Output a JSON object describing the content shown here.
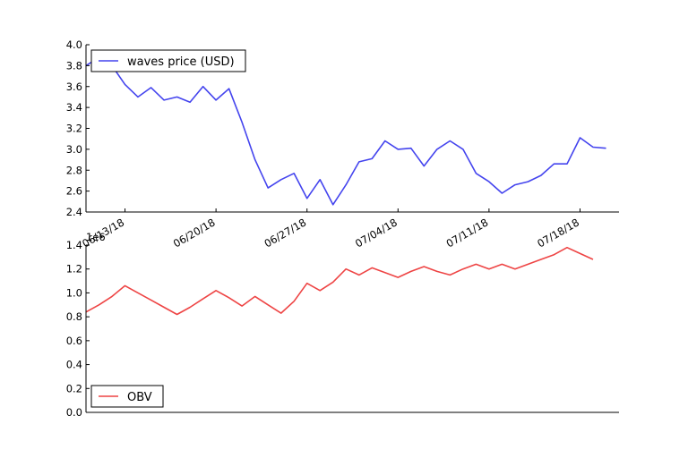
{
  "chart_data": [
    {
      "type": "line",
      "x_axis": "date",
      "ylim": [
        2.4,
        4.0
      ],
      "xlim": [
        "2018-06-10",
        "2018-07-21"
      ],
      "yticks": [
        "2.4",
        "2.6",
        "2.8",
        "3.0",
        "3.2",
        "3.4",
        "3.6",
        "3.8",
        "4.0"
      ],
      "xticks": [
        {
          "date": "2018-06-13",
          "label": "06/13/18"
        },
        {
          "date": "2018-06-20",
          "label": "06/20/18"
        },
        {
          "date": "2018-06-27",
          "label": "06/27/18"
        },
        {
          "date": "2018-07-04",
          "label": "07/04/18"
        },
        {
          "date": "2018-07-11",
          "label": "07/11/18"
        },
        {
          "date": "2018-07-18",
          "label": "07/18/18"
        }
      ],
      "legend_position": "top-left",
      "series": [
        {
          "name": "waves price (USD)",
          "color": "#4444ee",
          "points": [
            [
              "2018-06-10",
              3.8
            ],
            [
              "2018-06-11",
              3.88
            ],
            [
              "2018-06-12",
              3.8
            ],
            [
              "2018-06-13",
              3.62
            ],
            [
              "2018-06-14",
              3.5
            ],
            [
              "2018-06-15",
              3.59
            ],
            [
              "2018-06-16",
              3.47
            ],
            [
              "2018-06-17",
              3.5
            ],
            [
              "2018-06-18",
              3.45
            ],
            [
              "2018-06-19",
              3.6
            ],
            [
              "2018-06-20",
              3.47
            ],
            [
              "2018-06-21",
              3.58
            ],
            [
              "2018-06-22",
              3.26
            ],
            [
              "2018-06-23",
              2.9
            ],
            [
              "2018-06-24",
              2.63
            ],
            [
              "2018-06-25",
              2.71
            ],
            [
              "2018-06-26",
              2.77
            ],
            [
              "2018-06-27",
              2.53
            ],
            [
              "2018-06-28",
              2.71
            ],
            [
              "2018-06-29",
              2.47
            ],
            [
              "2018-06-30",
              2.66
            ],
            [
              "2018-07-01",
              2.88
            ],
            [
              "2018-07-02",
              2.91
            ],
            [
              "2018-07-03",
              3.08
            ],
            [
              "2018-07-04",
              3.0
            ],
            [
              "2018-07-05",
              3.01
            ],
            [
              "2018-07-06",
              2.84
            ],
            [
              "2018-07-07",
              3.0
            ],
            [
              "2018-07-08",
              3.08
            ],
            [
              "2018-07-09",
              3.0
            ],
            [
              "2018-07-10",
              2.77
            ],
            [
              "2018-07-11",
              2.69
            ],
            [
              "2018-07-12",
              2.58
            ],
            [
              "2018-07-13",
              2.66
            ],
            [
              "2018-07-14",
              2.69
            ],
            [
              "2018-07-15",
              2.75
            ],
            [
              "2018-07-16",
              2.86
            ],
            [
              "2018-07-17",
              2.86
            ],
            [
              "2018-07-18",
              3.11
            ],
            [
              "2018-07-19",
              3.02
            ],
            [
              "2018-07-20",
              3.01
            ]
          ]
        }
      ]
    },
    {
      "type": "line",
      "x_axis": "date",
      "ylim": [
        0.0,
        1.4
      ],
      "xlim": [
        "2018-06-10",
        "2018-07-21"
      ],
      "yticks": [
        "0.0",
        "0.2",
        "0.4",
        "0.6",
        "0.8",
        "1.0",
        "1.2",
        "1.4"
      ],
      "offset_text": "1e6",
      "legend_position": "bottom-left",
      "series": [
        {
          "name": "OBV",
          "color": "#ee4444",
          "points": [
            [
              "2018-06-10",
              0.84
            ],
            [
              "2018-06-11",
              0.9
            ],
            [
              "2018-06-12",
              0.97
            ],
            [
              "2018-06-13",
              1.06
            ],
            [
              "2018-06-14",
              1.0
            ],
            [
              "2018-06-15",
              0.94
            ],
            [
              "2018-06-16",
              0.88
            ],
            [
              "2018-06-17",
              0.82
            ],
            [
              "2018-06-18",
              0.88
            ],
            [
              "2018-06-19",
              0.95
            ],
            [
              "2018-06-20",
              1.02
            ],
            [
              "2018-06-21",
              0.96
            ],
            [
              "2018-06-22",
              0.89
            ],
            [
              "2018-06-23",
              0.97
            ],
            [
              "2018-06-24",
              0.9
            ],
            [
              "2018-06-25",
              0.83
            ],
            [
              "2018-06-26",
              0.93
            ],
            [
              "2018-06-27",
              1.08
            ],
            [
              "2018-06-28",
              1.02
            ],
            [
              "2018-06-29",
              1.09
            ],
            [
              "2018-06-30",
              1.2
            ],
            [
              "2018-07-01",
              1.15
            ],
            [
              "2018-07-02",
              1.21
            ],
            [
              "2018-07-03",
              1.17
            ],
            [
              "2018-07-04",
              1.13
            ],
            [
              "2018-07-05",
              1.18
            ],
            [
              "2018-07-06",
              1.22
            ],
            [
              "2018-07-07",
              1.18
            ],
            [
              "2018-07-08",
              1.15
            ],
            [
              "2018-07-09",
              1.2
            ],
            [
              "2018-07-10",
              1.24
            ],
            [
              "2018-07-11",
              1.2
            ],
            [
              "2018-07-12",
              1.24
            ],
            [
              "2018-07-13",
              1.2
            ],
            [
              "2018-07-14",
              1.24
            ],
            [
              "2018-07-15",
              1.28
            ],
            [
              "2018-07-16",
              1.32
            ],
            [
              "2018-07-17",
              1.38
            ],
            [
              "2018-07-18",
              1.33
            ],
            [
              "2018-07-19",
              1.28
            ]
          ]
        }
      ]
    }
  ]
}
